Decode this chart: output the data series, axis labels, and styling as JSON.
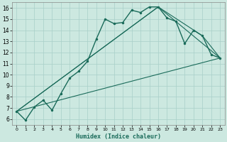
{
  "title": "",
  "xlabel": "Humidex (Indice chaleur)",
  "bg_color": "#cce8e0",
  "line_color": "#1a6b5a",
  "grid_color": "#a8cfc8",
  "xlim": [
    -0.5,
    23.5
  ],
  "ylim": [
    5.5,
    16.5
  ],
  "xticks": [
    0,
    1,
    2,
    3,
    4,
    5,
    6,
    7,
    8,
    9,
    10,
    11,
    12,
    13,
    14,
    15,
    16,
    17,
    18,
    19,
    20,
    21,
    22,
    23
  ],
  "yticks": [
    6,
    7,
    8,
    9,
    10,
    11,
    12,
    13,
    14,
    15,
    16
  ],
  "line1_x": [
    0,
    1,
    2,
    3,
    4,
    5,
    6,
    7,
    8,
    9,
    10,
    11,
    12,
    13,
    14,
    15,
    16,
    17,
    18,
    19,
    20,
    21,
    22,
    23
  ],
  "line1_y": [
    6.7,
    5.9,
    7.1,
    7.7,
    6.8,
    8.3,
    9.7,
    10.3,
    11.2,
    13.2,
    15.0,
    14.6,
    14.7,
    15.8,
    15.6,
    16.1,
    16.1,
    15.1,
    14.8,
    12.8,
    14.0,
    13.5,
    11.8,
    11.5
  ],
  "line2_x": [
    0,
    23
  ],
  "line2_y": [
    6.7,
    11.5
  ],
  "line3_x": [
    0,
    16,
    23
  ],
  "line3_y": [
    6.7,
    16.1,
    11.5
  ],
  "line4_x": [
    0,
    16,
    21,
    23
  ],
  "line4_y": [
    6.7,
    16.1,
    13.5,
    11.5
  ]
}
